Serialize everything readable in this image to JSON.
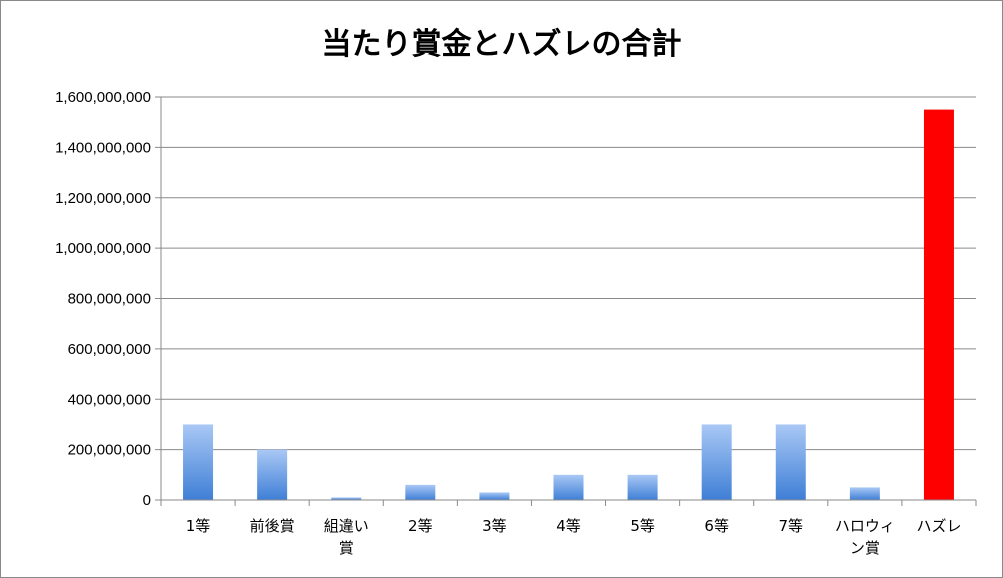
{
  "chart_data": {
    "type": "bar",
    "title": "当たり賞金とハズレの合計",
    "xlabel": "",
    "ylabel": "",
    "ylim": [
      0,
      1600000000
    ],
    "yticks": [
      0,
      200000000,
      400000000,
      600000000,
      800000000,
      1000000000,
      1200000000,
      1400000000,
      1600000000
    ],
    "ytick_labels": [
      "0",
      "200,000,000",
      "400,000,000",
      "600,000,000",
      "800,000,000",
      "1,000,000,000",
      "1,200,000,000",
      "1,400,000,000",
      "1,600,000,000"
    ],
    "grid": true,
    "legend": "none",
    "categories": [
      "1等",
      "前後賞",
      "組違い賞",
      "2等",
      "3等",
      "4等",
      "5等",
      "6等",
      "7等",
      "ハロウィン賞",
      "ハズレ"
    ],
    "category_lines": [
      [
        "1等"
      ],
      [
        "前後賞"
      ],
      [
        "組違い",
        "賞"
      ],
      [
        "2等"
      ],
      [
        "3等"
      ],
      [
        "4等"
      ],
      [
        "5等"
      ],
      [
        "6等"
      ],
      [
        "7等"
      ],
      [
        "ハロウィ",
        "ン賞"
      ],
      [
        "ハズレ"
      ]
    ],
    "values": [
      300000000,
      200000000,
      10000000,
      60000000,
      30000000,
      100000000,
      100000000,
      300000000,
      300000000,
      50000000,
      1550000000
    ],
    "bar_colors": [
      "blue",
      "blue",
      "blue",
      "blue",
      "blue",
      "blue",
      "blue",
      "blue",
      "blue",
      "blue",
      "red"
    ],
    "colors": {
      "blue_top": "#a9c8f5",
      "blue_bottom": "#3f7fd6",
      "red": "#ff0000",
      "grid": "#8a8a8a",
      "axis": "#8a8a8a"
    }
  }
}
